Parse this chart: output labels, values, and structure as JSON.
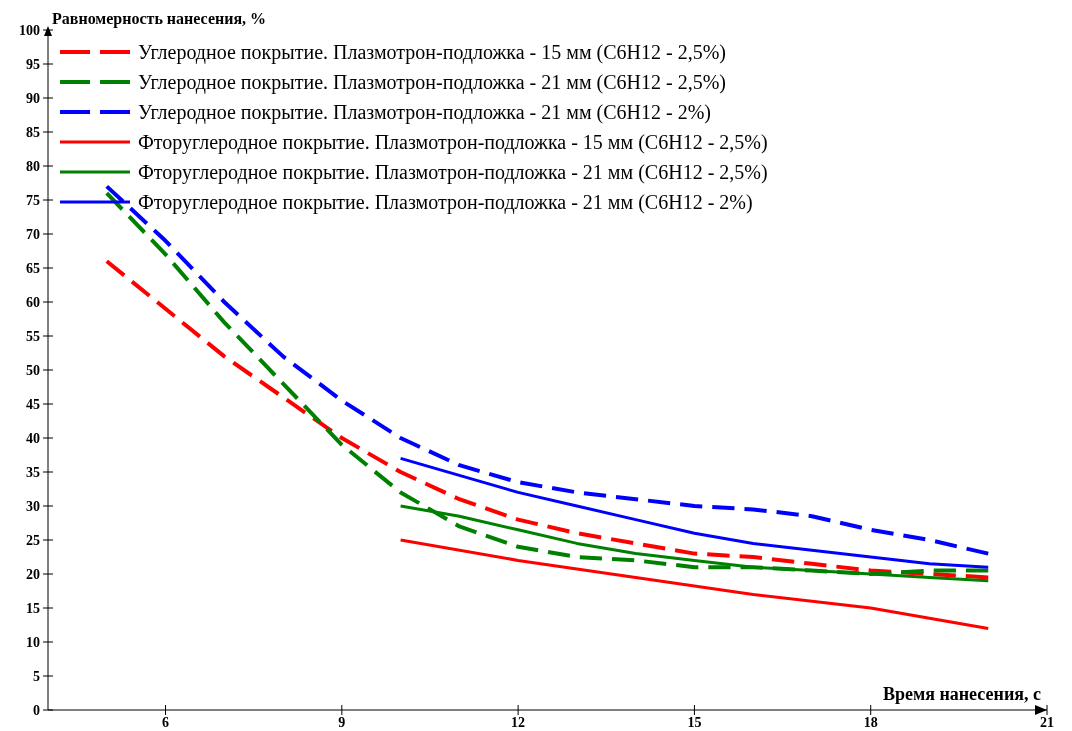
{
  "chart_data": {
    "type": "line",
    "xlabel": "Время нанесения, с",
    "ylabel": "Равномерность нанесения, %",
    "xlim": [
      4,
      21
    ],
    "xticks": [
      6,
      9,
      12,
      15,
      18,
      21
    ],
    "ylim": [
      0,
      100
    ],
    "yticks": [
      0,
      5,
      10,
      15,
      20,
      25,
      30,
      35,
      40,
      45,
      50,
      55,
      60,
      65,
      70,
      75,
      80,
      85,
      90,
      95,
      100
    ],
    "legend": "top left",
    "grid": false,
    "series": [
      {
        "name": "Углеродное покрытие. Плазмотрон-подложка - 15 мм (С6Н12 - 2,5%)",
        "color": "#ff0000",
        "line_style": "dashed",
        "x": [
          5,
          6,
          7,
          8,
          9,
          10,
          11,
          12,
          13,
          14,
          15,
          16,
          17,
          18,
          19,
          20
        ],
        "values": [
          66,
          59,
          52,
          46,
          40,
          35,
          31,
          28,
          26,
          24.5,
          23,
          22.5,
          21.5,
          20.5,
          20,
          19.5
        ]
      },
      {
        "name": "Углеродное покрытие. Плазмотрон-подложка - 21 мм (С6Н12 - 2,5%)",
        "color": "#008000",
        "line_style": "dashed",
        "x": [
          5,
          6,
          7,
          8,
          9,
          10,
          11,
          12,
          13,
          14,
          15,
          16,
          17,
          18,
          19,
          20
        ],
        "values": [
          76,
          67,
          57,
          48,
          39,
          32,
          27,
          24,
          22.5,
          22,
          21,
          21,
          20.5,
          20,
          20.5,
          20.5
        ]
      },
      {
        "name": "Углеродное покрытие. Плазмотрон-подложка - 21 мм (С6Н12 - 2%)",
        "color": "#0000ff",
        "line_style": "dashed",
        "x": [
          5,
          6,
          7,
          8,
          9,
          10,
          11,
          12,
          13,
          14,
          15,
          16,
          17,
          18,
          19,
          20
        ],
        "values": [
          77,
          69,
          60,
          52,
          45.5,
          40,
          36,
          33.5,
          32,
          31,
          30,
          29.5,
          28.5,
          26.5,
          25,
          23
        ]
      },
      {
        "name": "Фторуглеродное покрытие. Плазмотрон-подложка - 15 мм (С6Н12 - 2,5%)",
        "color": "#ff0000",
        "line_style": "solid",
        "x": [
          10,
          12,
          14,
          16,
          18,
          20
        ],
        "values": [
          25,
          22,
          19.5,
          17,
          15,
          12
        ]
      },
      {
        "name": "Фторуглеродное покрытие. Плазмотрон-подложка - 21 мм (С6Н12 - 2,5%)",
        "color": "#008000",
        "line_style": "solid",
        "x": [
          10,
          11,
          12,
          13,
          14,
          15,
          16,
          17,
          18,
          19,
          20
        ],
        "values": [
          30,
          28.5,
          26.5,
          24.5,
          23,
          22,
          21,
          20.5,
          20,
          19.5,
          19
        ]
      },
      {
        "name": "Фторуглеродное покрытие. Плазмотрон-подложка - 21 мм (С6Н12 - 2%)",
        "color": "#0000ff",
        "line_style": "solid",
        "x": [
          10,
          11,
          12,
          13,
          14,
          15,
          16,
          17,
          18,
          19,
          20
        ],
        "values": [
          37,
          34.5,
          32,
          30,
          28,
          26,
          24.5,
          23.5,
          22.5,
          21.5,
          21
        ]
      }
    ]
  }
}
